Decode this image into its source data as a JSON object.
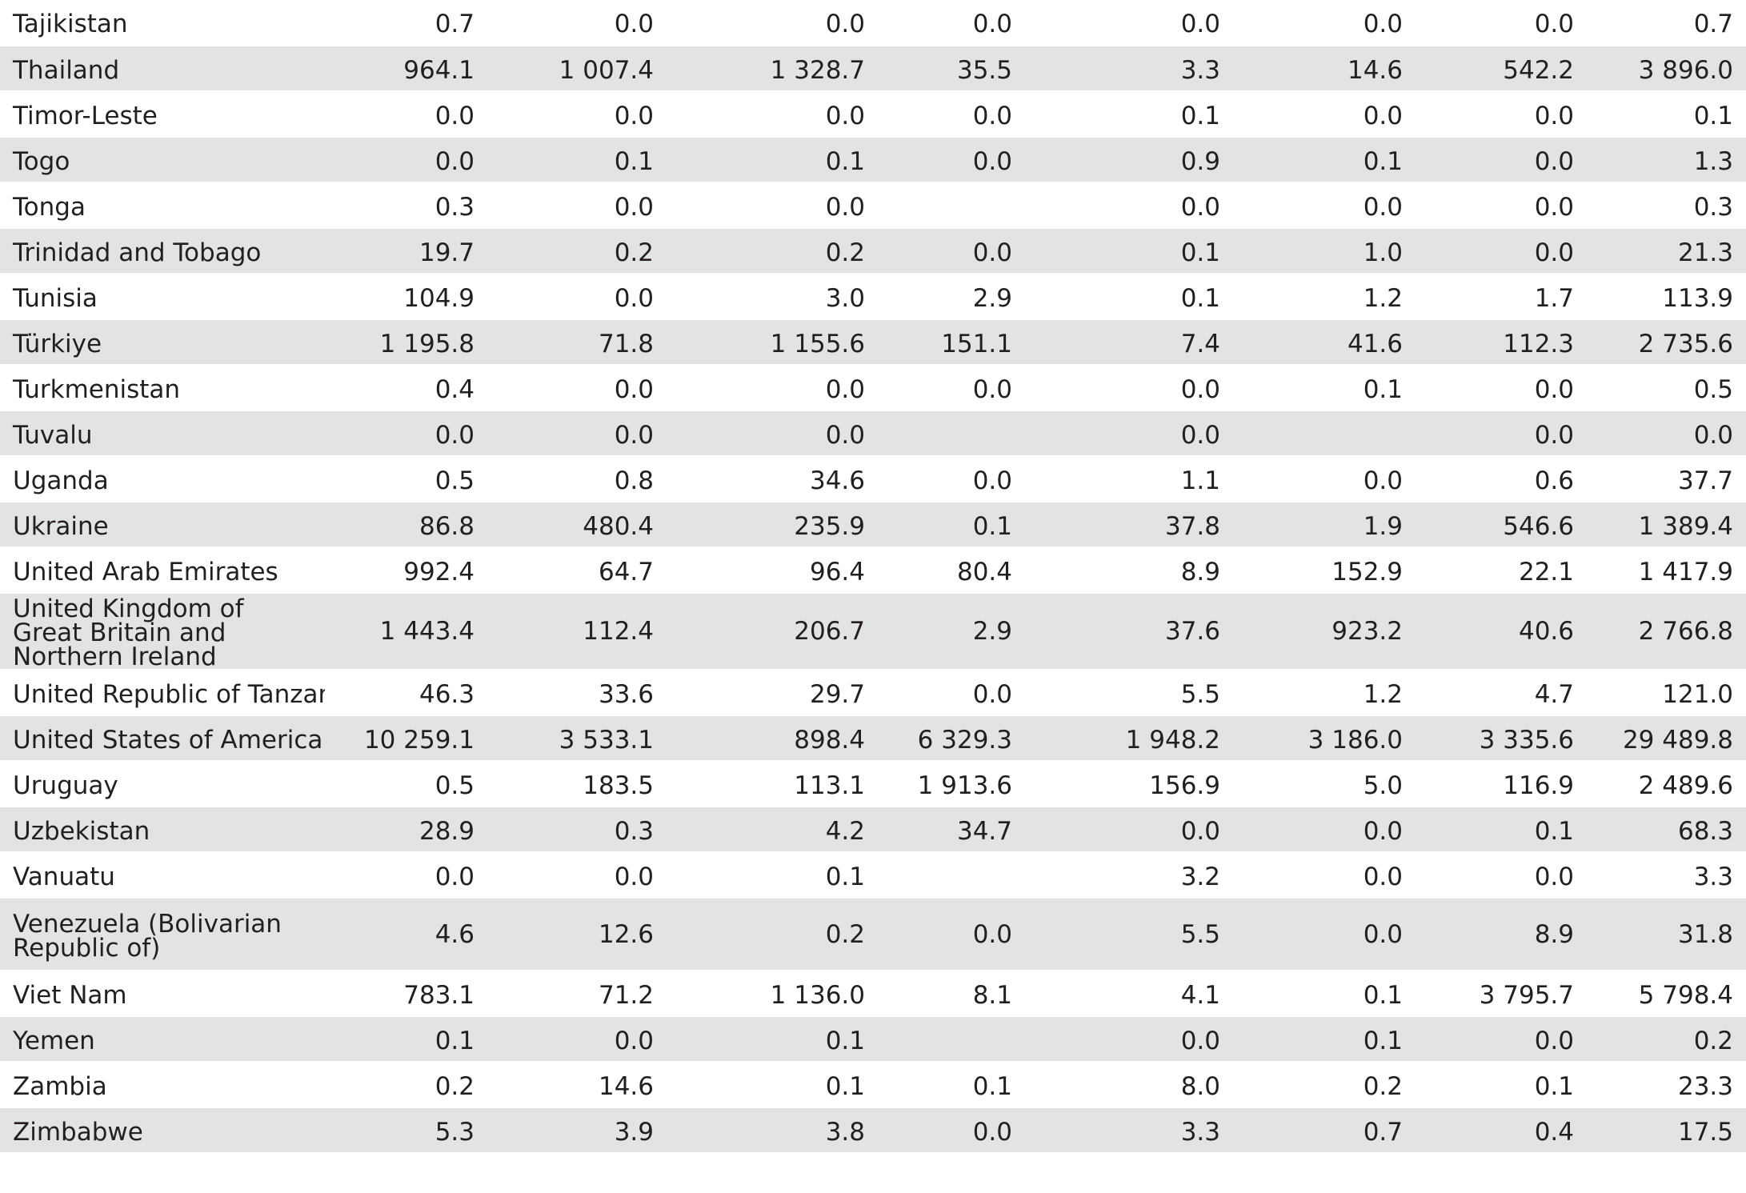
{
  "rows": [
    {
      "name": "Tajikistan",
      "values": [
        "0.7",
        "0.0",
        "0.0",
        "0.0",
        "0.0",
        "0.0",
        "0.0",
        "0.7"
      ]
    },
    {
      "name": "Thailand",
      "values": [
        "964.1",
        "1 007.4",
        "1 328.7",
        "35.5",
        "3.3",
        "14.6",
        "542.2",
        "3 896.0"
      ]
    },
    {
      "name": "Timor-Leste",
      "values": [
        "0.0",
        "0.0",
        "0.0",
        "0.0",
        "0.1",
        "0.0",
        "0.0",
        "0.1"
      ]
    },
    {
      "name": "Togo",
      "values": [
        "0.0",
        "0.1",
        "0.1",
        "0.0",
        "0.9",
        "0.1",
        "0.0",
        "1.3"
      ]
    },
    {
      "name": "Tonga",
      "values": [
        "0.3",
        "0.0",
        "0.0",
        "",
        "0.0",
        "0.0",
        "0.0",
        "0.3"
      ]
    },
    {
      "name": "Trinidad and Tobago",
      "values": [
        "19.7",
        "0.2",
        "0.2",
        "0.0",
        "0.1",
        "1.0",
        "0.0",
        "21.3"
      ]
    },
    {
      "name": "Tunisia",
      "values": [
        "104.9",
        "0.0",
        "3.0",
        "2.9",
        "0.1",
        "1.2",
        "1.7",
        "113.9"
      ]
    },
    {
      "name": "Türkiye",
      "values": [
        "1 195.8",
        "71.8",
        "1 155.6",
        "151.1",
        "7.4",
        "41.6",
        "112.3",
        "2 735.6"
      ]
    },
    {
      "name": "Turkmenistan",
      "values": [
        "0.4",
        "0.0",
        "0.0",
        "0.0",
        "0.0",
        "0.1",
        "0.0",
        "0.5"
      ]
    },
    {
      "name": "Tuvalu",
      "values": [
        "0.0",
        "0.0",
        "0.0",
        "",
        "0.0",
        "",
        "0.0",
        "0.0"
      ]
    },
    {
      "name": "Uganda",
      "values": [
        "0.5",
        "0.8",
        "34.6",
        "0.0",
        "1.1",
        "0.0",
        "0.6",
        "37.7"
      ]
    },
    {
      "name": "Ukraine",
      "values": [
        "86.8",
        "480.4",
        "235.9",
        "0.1",
        "37.8",
        "1.9",
        "546.6",
        "1 389.4"
      ]
    },
    {
      "name": "United Arab Emirates",
      "values": [
        "992.4",
        "64.7",
        "96.4",
        "80.4",
        "8.9",
        "152.9",
        "22.1",
        "1 417.9"
      ]
    },
    {
      "name": "United Kingdom of Great Britain and Northern Ireland",
      "values": [
        "1 443.4",
        "112.4",
        "206.7",
        "2.9",
        "37.6",
        "923.2",
        "40.6",
        "2 766.8"
      ]
    },
    {
      "name": "United Republic of Tanzania",
      "values": [
        "46.3",
        "33.6",
        "29.7",
        "0.0",
        "5.5",
        "1.2",
        "4.7",
        "121.0"
      ]
    },
    {
      "name": "United States of America",
      "values": [
        "10 259.1",
        "3 533.1",
        "898.4",
        "6 329.3",
        "1 948.2",
        "3 186.0",
        "3 335.6",
        "29 489.8"
      ]
    },
    {
      "name": "Uruguay",
      "values": [
        "0.5",
        "183.5",
        "113.1",
        "1 913.6",
        "156.9",
        "5.0",
        "116.9",
        "2 489.6"
      ]
    },
    {
      "name": "Uzbekistan",
      "values": [
        "28.9",
        "0.3",
        "4.2",
        "34.7",
        "0.0",
        "0.0",
        "0.1",
        "68.3"
      ]
    },
    {
      "name": "Vanuatu",
      "values": [
        "0.0",
        "0.0",
        "0.1",
        "",
        "3.2",
        "0.0",
        "0.0",
        "3.3"
      ]
    },
    {
      "name": "Venezuela (Bolivarian Republic of)",
      "values": [
        "4.6",
        "12.6",
        "0.2",
        "0.0",
        "5.5",
        "0.0",
        "8.9",
        "31.8"
      ]
    },
    {
      "name": "Viet Nam",
      "values": [
        "783.1",
        "71.2",
        "1 136.0",
        "8.1",
        "4.1",
        "0.1",
        "3 795.7",
        "5 798.4"
      ]
    },
    {
      "name": "Yemen",
      "values": [
        "0.1",
        "0.0",
        "0.1",
        "",
        "0.0",
        "0.1",
        "0.0",
        "0.2"
      ]
    },
    {
      "name": "Zambia",
      "values": [
        "0.2",
        "14.6",
        "0.1",
        "0.1",
        "8.0",
        "0.2",
        "0.1",
        "23.3"
      ]
    },
    {
      "name": "Zimbabwe",
      "values": [
        "5.3",
        "3.9",
        "3.8",
        "0.0",
        "3.3",
        "0.7",
        "0.4",
        "17.5"
      ]
    }
  ]
}
